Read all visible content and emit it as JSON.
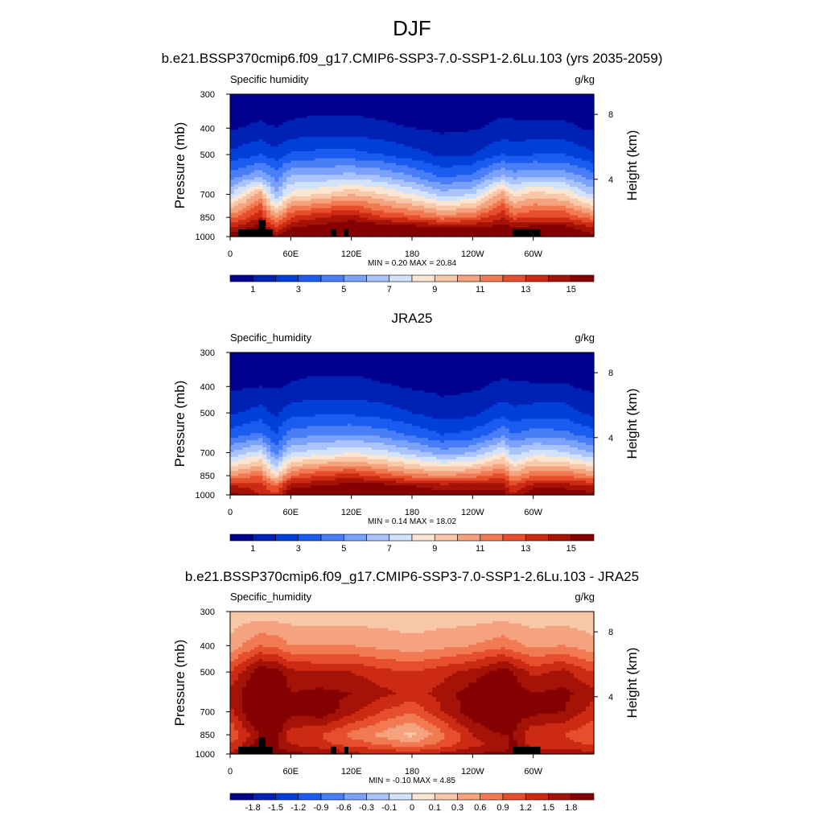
{
  "figure": {
    "title": "DJF"
  },
  "panels": [
    {
      "title": "b.e21.BSSP370cmip6.f09_g17.CMIP6-SSP3-7.0-SSP1-2.6Lu.103 (yrs 2035-2059)",
      "var_label": "Specific humidity",
      "units": "g/kg",
      "minmax": "MIN =   0.20  MAX =  20.84",
      "colorbar_labels": [
        "1",
        "3",
        "5",
        "7",
        "9",
        "11",
        "13",
        "15"
      ]
    },
    {
      "title": "JRA25",
      "var_label": "Specific_humidity",
      "units": "g/kg",
      "minmax": "MIN =   0.14  MAX =  18.02",
      "colorbar_labels": [
        "1",
        "3",
        "5",
        "7",
        "9",
        "11",
        "13",
        "15"
      ]
    },
    {
      "title": "b.e21.BSSP370cmip6.f09_g17.CMIP6-SSP3-7.0-SSP1-2.6Lu.103 - JRA25",
      "var_label": "Specific_humidity",
      "units": "g/kg",
      "minmax": "MIN =  -0.10  MAX =   4.85",
      "colorbar_labels": [
        "-1.8",
        "-1.5",
        "-1.2",
        "-0.9",
        "-0.6",
        "-0.3",
        "-0.1",
        "0",
        "0.1",
        "0.3",
        "0.6",
        "0.9",
        "1.2",
        "1.5",
        "1.8"
      ]
    }
  ],
  "axes": {
    "ylabel_left": "Pressure (mb)",
    "ylabel_right": "Height (km)",
    "pressure_ticks": [
      "300",
      "400",
      "500",
      "700",
      "850",
      "1000"
    ],
    "height_ticks": [
      "8",
      "4"
    ],
    "x_ticks": [
      "0",
      "60E",
      "120E",
      "180",
      "120W",
      "60W"
    ]
  },
  "colors": {
    "abs_palette": [
      "#00008f",
      "#0022b4",
      "#0040d8",
      "#1a5cf0",
      "#4a7ef7",
      "#7ba2fb",
      "#aac4fb",
      "#d2e2fb",
      "#fbe6d4",
      "#f8c8a8",
      "#f5a37f",
      "#f17a53",
      "#e74e2c",
      "#cc2a12",
      "#a51207",
      "#850000"
    ],
    "diff_palette": [
      "#00008f",
      "#0022b4",
      "#0040d8",
      "#1a5cf0",
      "#4a7ef7",
      "#7ba2fb",
      "#aac4fb",
      "#d2e2fb",
      "#fbe6d4",
      "#f8c8a8",
      "#f5a37f",
      "#f17a53",
      "#e74e2c",
      "#cc2a12",
      "#a51207",
      "#850000"
    ],
    "topography": "#000000"
  },
  "chart_data": [
    {
      "type": "heatmap",
      "title": "b.e21.BSSP370cmip6.f09_g17.CMIP6-SSP3-7.0-SSP1-2.6Lu.103 (yrs 2035-2059)",
      "xlabel": "",
      "ylabel": "Pressure (mb)",
      "x": [
        0,
        30,
        45,
        60,
        90,
        120,
        150,
        180,
        210,
        240,
        270,
        280,
        300,
        330,
        357
      ],
      "y": [
        300,
        400,
        500,
        600,
        700,
        850,
        925,
        1000
      ],
      "z": [
        [
          0.3,
          0.3,
          0.4,
          0.4,
          0.4,
          0.4,
          0.3,
          0.3,
          0.3,
          0.3,
          0.4,
          0.4,
          0.3,
          0.3,
          0.3
        ],
        [
          0.9,
          1.2,
          1.0,
          1.2,
          1.4,
          1.4,
          1.2,
          1.0,
          0.8,
          0.9,
          1.3,
          1.2,
          1.2,
          1.2,
          0.9
        ],
        [
          2.2,
          3.0,
          2.4,
          3.2,
          3.4,
          3.4,
          3.0,
          2.4,
          1.8,
          2.0,
          3.0,
          2.8,
          3.0,
          3.0,
          2.2
        ],
        [
          4.5,
          5.8,
          4.5,
          6.0,
          6.2,
          6.4,
          6.0,
          5.0,
          3.8,
          4.2,
          6.2,
          5.5,
          6.0,
          5.8,
          4.5
        ],
        [
          7.0,
          10.5,
          6.0,
          8.5,
          9.0,
          10.0,
          9.2,
          8.0,
          6.5,
          7.0,
          10.5,
          8.5,
          9.5,
          9.0,
          7.0
        ],
        [
          11.5,
          14.0,
          10.5,
          13.0,
          14.0,
          14.5,
          13.0,
          12.5,
          11.5,
          12.0,
          14.0,
          12.5,
          13.0,
          13.0,
          11.5
        ],
        [
          14.0,
          15.5,
          13.0,
          15.0,
          15.5,
          16.0,
          16.0,
          15.5,
          15.0,
          15.0,
          15.5,
          15.0,
          15.5,
          15.5,
          14.0
        ],
        [
          15.5,
          16.5,
          15.0,
          16.5,
          17.0,
          17.0,
          17.0,
          16.5,
          16.0,
          16.0,
          16.5,
          16.0,
          16.5,
          16.5,
          15.5
        ]
      ],
      "levels": [
        0,
        1,
        2,
        3,
        4,
        5,
        6,
        7,
        8,
        9,
        10,
        11,
        12,
        13,
        14,
        15
      ],
      "min": 0.2,
      "max": 20.84,
      "units": "g/kg"
    },
    {
      "type": "heatmap",
      "title": "JRA25",
      "xlabel": "",
      "ylabel": "Pressure (mb)",
      "x": [
        0,
        30,
        45,
        60,
        90,
        120,
        150,
        180,
        210,
        240,
        270,
        280,
        300,
        330,
        357
      ],
      "y": [
        300,
        400,
        500,
        600,
        700,
        850,
        925,
        1000
      ],
      "z": [
        [
          0.3,
          0.3,
          0.4,
          0.4,
          0.4,
          0.4,
          0.3,
          0.3,
          0.3,
          0.3,
          0.4,
          0.4,
          0.3,
          0.3,
          0.3
        ],
        [
          0.8,
          1.0,
          0.9,
          1.1,
          1.3,
          1.3,
          1.1,
          0.9,
          0.7,
          0.8,
          1.2,
          1.1,
          1.1,
          1.1,
          0.8
        ],
        [
          1.8,
          2.4,
          1.8,
          2.6,
          2.8,
          2.8,
          2.5,
          2.0,
          1.5,
          1.7,
          2.6,
          2.3,
          2.5,
          2.5,
          1.8
        ],
        [
          3.5,
          4.2,
          3.0,
          4.5,
          4.8,
          5.0,
          4.6,
          3.8,
          3.0,
          3.3,
          4.8,
          4.0,
          4.5,
          4.4,
          3.5
        ],
        [
          6.0,
          7.5,
          4.5,
          7.0,
          7.5,
          8.0,
          7.5,
          6.5,
          5.5,
          6.0,
          8.0,
          6.5,
          7.5,
          7.2,
          6.0
        ],
        [
          11.0,
          12.0,
          8.5,
          12.0,
          13.0,
          13.5,
          12.5,
          11.5,
          11.0,
          11.5,
          12.5,
          10.5,
          12.0,
          12.0,
          11.0
        ],
        [
          14.0,
          13.5,
          12.0,
          14.5,
          15.0,
          15.5,
          15.5,
          15.0,
          14.5,
          14.5,
          14.5,
          13.0,
          14.5,
          14.5,
          14.0
        ],
        [
          15.5,
          14.0,
          13.0,
          16.0,
          16.5,
          16.5,
          16.5,
          16.0,
          15.5,
          15.5,
          15.5,
          14.0,
          16.0,
          16.0,
          15.5
        ]
      ],
      "levels": [
        0,
        1,
        2,
        3,
        4,
        5,
        6,
        7,
        8,
        9,
        10,
        11,
        12,
        13,
        14,
        15
      ],
      "min": 0.14,
      "max": 18.02,
      "units": "g/kg"
    },
    {
      "type": "heatmap",
      "title": "b.e21.BSSP370cmip6.f09_g17.CMIP6-SSP3-7.0-SSP1-2.6Lu.103 - JRA25",
      "xlabel": "",
      "ylabel": "Pressure (mb)",
      "x": [
        0,
        30,
        45,
        60,
        90,
        120,
        150,
        180,
        210,
        240,
        270,
        280,
        300,
        330,
        357
      ],
      "y": [
        300,
        400,
        500,
        600,
        700,
        850,
        925,
        1000
      ],
      "z": [
        [
          0.1,
          0.1,
          0.1,
          0.1,
          0.1,
          0.1,
          0.1,
          0.1,
          0.1,
          0.1,
          0.1,
          0.1,
          0.1,
          0.1,
          0.1
        ],
        [
          0.4,
          0.9,
          0.8,
          0.6,
          0.6,
          0.6,
          0.5,
          0.4,
          0.5,
          0.6,
          0.8,
          0.7,
          0.5,
          0.6,
          0.4
        ],
        [
          1.2,
          2.0,
          2.0,
          1.6,
          1.5,
          1.5,
          1.3,
          1.2,
          1.4,
          1.6,
          2.0,
          1.8,
          1.4,
          1.6,
          1.2
        ],
        [
          1.6,
          2.2,
          2.2,
          1.8,
          1.9,
          1.8,
          1.6,
          1.4,
          1.6,
          2.0,
          2.2,
          2.0,
          1.8,
          1.9,
          1.6
        ],
        [
          1.4,
          2.4,
          2.2,
          1.9,
          2.0,
          1.6,
          1.2,
          0.9,
          1.5,
          2.0,
          2.4,
          2.0,
          1.9,
          1.8,
          1.4
        ],
        [
          0.9,
          1.8,
          2.0,
          1.3,
          1.2,
          0.8,
          0.5,
          0.2,
          0.8,
          1.5,
          1.8,
          1.8,
          1.2,
          1.2,
          0.9
        ],
        [
          1.2,
          2.0,
          1.8,
          1.5,
          1.3,
          1.1,
          0.9,
          0.7,
          1.0,
          1.4,
          1.6,
          1.9,
          1.3,
          1.3,
          1.2
        ],
        [
          1.6,
          2.2,
          2.0,
          1.9,
          1.8,
          1.6,
          1.5,
          1.4,
          1.6,
          1.8,
          1.9,
          2.0,
          1.8,
          1.8,
          1.6
        ]
      ],
      "levels": [
        -2.1,
        -1.8,
        -1.5,
        -1.2,
        -0.9,
        -0.6,
        -0.3,
        -0.1,
        0,
        0.1,
        0.3,
        0.6,
        0.9,
        1.2,
        1.5,
        1.8
      ],
      "min": -0.1,
      "max": 4.85,
      "units": "g/kg"
    }
  ]
}
